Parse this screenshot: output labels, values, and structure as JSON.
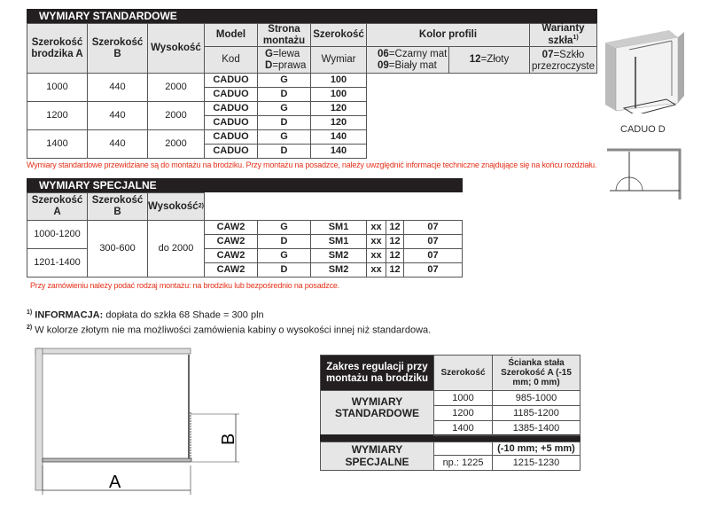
{
  "standard": {
    "title": "WYMIARY STANDARDOWE",
    "headers": {
      "width_tray_a": "Szerokość brodzika A",
      "width_b": "Szerokość B",
      "height": "Wysokość",
      "model": "Model",
      "model_sub": "Kod",
      "side": "Strona montażu",
      "side_sub_g": "G",
      "side_sub_g_txt": "=lewa",
      "side_sub_d": "D",
      "side_sub_d_txt": "=prawa",
      "width": "Szerokość",
      "width_sub": "Wymiar",
      "color": "Kolor profili",
      "color_sub1_a": "06",
      "color_sub1_a_txt": "=Czarny mat",
      "color_sub1_b": "09",
      "color_sub1_b_txt": "=Biały mat",
      "color_sub2": "12",
      "color_sub2_txt": "=Złoty",
      "glass": "Warianty szkła",
      "glass_sup": "1)",
      "glass_sub": "07",
      "glass_sub_txt": "=Szkło przezroczyste"
    },
    "groups": [
      {
        "a": "1000",
        "b": "440",
        "h": "2000"
      },
      {
        "a": "1200",
        "b": "440",
        "h": "2000"
      },
      {
        "a": "1400",
        "b": "440",
        "h": "2000"
      }
    ],
    "rows": [
      [
        "CADUO",
        "G",
        "100"
      ],
      [
        "CADUO",
        "D",
        "100"
      ],
      [
        "CADUO",
        "G",
        "120"
      ],
      [
        "CADUO",
        "D",
        "120"
      ],
      [
        "CADUO",
        "G",
        "140"
      ],
      [
        "CADUO",
        "D",
        "140"
      ]
    ],
    "note": "Wymiary standardowe przewidziane są do montażu na brodziku. Przy montażu na posadzce, należy uwzględnić informacje techniczne znajdujące się na końcu rozdziału."
  },
  "special": {
    "title": "WYMIARY SPECJALNE",
    "headers": {
      "width_a": "Szerokość A",
      "width_b": "Szerokość B",
      "height": "Wysokość",
      "height_sup": "2)"
    },
    "groups": [
      {
        "a": "1000-1200"
      },
      {
        "a": "1201-1400"
      }
    ],
    "b": "300-600",
    "h": "do 2000",
    "rows": [
      [
        "CAW2",
        "G",
        "SM1",
        "xx",
        "12",
        "07"
      ],
      [
        "CAW2",
        "D",
        "SM1",
        "xx",
        "12",
        "07"
      ],
      [
        "CAW2",
        "G",
        "SM2",
        "xx",
        "12",
        "07"
      ],
      [
        "CAW2",
        "D",
        "SM2",
        "xx",
        "12",
        "07"
      ]
    ],
    "note": "Przy zamówieniu należy podać rodzaj montażu: na brodziku lub bezpośrednio na posadzce."
  },
  "footnotes": [
    {
      "sup": "1)",
      "bold": "INFORMACJA:",
      "text": " dopłata do szkła 68 Shade = 300 pln"
    },
    {
      "sup": "2)",
      "bold": "",
      "text": " W kolorze złotym nie ma możliwości zamówienia kabiny o wysokości innej niż standardowa."
    }
  ],
  "product_caption": "CADUO D",
  "diagram": {
    "label_a": "A",
    "label_b": "B"
  },
  "adjust": {
    "header": "Zakres regulacji przy montażu na brodziku",
    "col_width": "Szerokość",
    "col_panel": "Ścianka stała Szerokość A (-15 mm; 0 mm)",
    "std_label": "WYMIARY STANDARDOWE",
    "std_rows": [
      [
        "1000",
        "985-1000"
      ],
      [
        "1200",
        "1185-1200"
      ],
      [
        "1400",
        "1385-1400"
      ]
    ],
    "spec_label": "WYMIARY SPECJALNE",
    "spec_range": "(-10 mm; +5 mm)",
    "spec_width": "np.: 1225",
    "spec_value": "1215-1230"
  }
}
